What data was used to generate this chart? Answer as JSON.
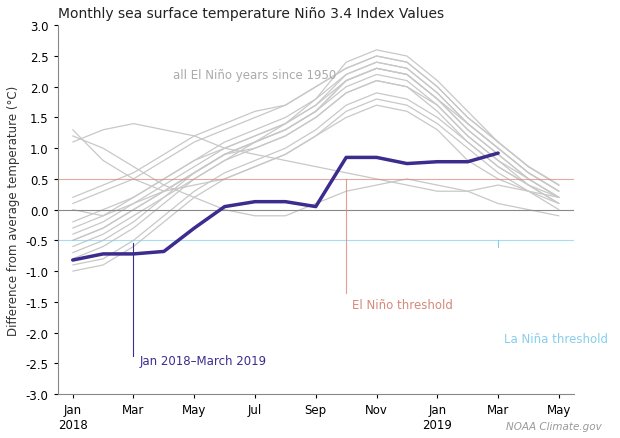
{
  "title": "Monthly sea surface temperature Niño 3.4 Index Values",
  "ylabel": "Difference from average temperature (°C)",
  "watermark": "NOAA Climate.gov",
  "ylim": [
    -3.0,
    3.0
  ],
  "yticks": [
    -3.0,
    -2.5,
    -2.0,
    -1.5,
    -1.0,
    -0.5,
    0.0,
    0.5,
    1.0,
    1.5,
    2.0,
    2.5,
    3.0
  ],
  "el_nino_threshold": 0.5,
  "la_nina_threshold": -0.5,
  "el_nino_color": "#d4897a",
  "la_nina_color": "#87ceeb",
  "zero_line_color": "#888888",
  "highlight_color": "#3d2b8e",
  "highlight_lw": 2.5,
  "gray_color": "#c8c8c8",
  "gray_lw": 0.9,
  "annotation_label": "Jan 2018–March 2019",
  "annotation_color": "#3d2b8e",
  "el_nino_label": "El Niño threshold",
  "la_nina_label": "La Niña threshold",
  "all_years_label": "all El Niño years since 1950",
  "tick_label_months": [
    "Jan",
    "Mar",
    "May",
    "Jul",
    "Sep",
    "Nov",
    "Jan",
    "Mar",
    "May"
  ],
  "tick_label_years": [
    "2018",
    "",
    "",
    "",
    "",
    "",
    "2019",
    "",
    ""
  ],
  "tick_positions": [
    0,
    2,
    4,
    6,
    8,
    10,
    12,
    14,
    16
  ],
  "highlight_x": [
    0,
    1,
    2,
    3,
    4,
    5,
    6,
    7,
    8,
    9,
    10,
    11,
    12,
    13,
    14
  ],
  "highlight_y": [
    -0.82,
    -0.72,
    -0.72,
    -0.68,
    -0.3,
    0.05,
    0.13,
    0.13,
    0.05,
    0.85,
    0.85,
    0.75,
    0.78,
    0.78,
    0.92
  ],
  "el_nino_vline_x": 9,
  "la_nina_vline_x": 14,
  "background_color": "#ffffff",
  "gray_lines": [
    [
      1.2,
      1.0,
      0.7,
      0.4,
      0.2,
      0.0,
      -0.1,
      -0.1,
      0.1,
      0.3,
      0.4,
      0.5,
      0.4,
      0.3,
      0.1,
      0.0,
      -0.1
    ],
    [
      1.3,
      0.8,
      0.5,
      0.3,
      0.4,
      0.5,
      0.7,
      0.9,
      1.2,
      1.5,
      1.7,
      1.6,
      1.3,
      0.8,
      0.5,
      0.3,
      0.2
    ],
    [
      0.0,
      -0.1,
      0.1,
      0.3,
      0.6,
      0.9,
      1.1,
      1.3,
      1.6,
      2.1,
      2.3,
      2.2,
      1.8,
      1.4,
      1.0,
      0.6,
      0.3
    ],
    [
      -0.5,
      -0.3,
      0.0,
      0.3,
      0.6,
      0.9,
      1.1,
      1.4,
      1.8,
      2.4,
      2.6,
      2.5,
      2.1,
      1.6,
      1.1,
      0.7,
      0.4
    ],
    [
      -0.8,
      -0.6,
      -0.3,
      0.1,
      0.5,
      0.8,
      1.1,
      1.3,
      1.6,
      2.1,
      2.3,
      2.2,
      1.8,
      1.3,
      0.9,
      0.5,
      0.2
    ],
    [
      -0.6,
      -0.4,
      -0.1,
      0.2,
      0.5,
      0.8,
      1.0,
      1.2,
      1.5,
      1.9,
      2.1,
      2.0,
      1.7,
      1.2,
      0.8,
      0.5,
      0.2
    ],
    [
      -0.9,
      -0.8,
      -0.5,
      -0.1,
      0.3,
      0.6,
      0.8,
      1.0,
      1.3,
      1.7,
      1.9,
      1.8,
      1.5,
      1.1,
      0.7,
      0.4,
      0.1
    ],
    [
      -0.7,
      -0.5,
      -0.2,
      0.2,
      0.6,
      0.9,
      1.1,
      1.3,
      1.6,
      2.0,
      2.2,
      2.1,
      1.7,
      1.2,
      0.8,
      0.4,
      0.2
    ],
    [
      -0.4,
      -0.2,
      0.1,
      0.4,
      0.7,
      1.0,
      1.2,
      1.4,
      1.7,
      2.2,
      2.4,
      2.3,
      1.9,
      1.4,
      1.0,
      0.6,
      0.3
    ],
    [
      -0.3,
      -0.1,
      0.2,
      0.5,
      0.8,
      1.1,
      1.3,
      1.5,
      1.8,
      2.2,
      2.4,
      2.3,
      1.9,
      1.4,
      1.0,
      0.6,
      0.3
    ],
    [
      0.1,
      0.3,
      0.5,
      0.8,
      1.1,
      1.3,
      1.5,
      1.7,
      2.0,
      2.3,
      2.5,
      2.4,
      2.0,
      1.5,
      1.1,
      0.7,
      0.4
    ],
    [
      -0.2,
      0.0,
      0.2,
      0.5,
      0.8,
      1.0,
      1.2,
      1.4,
      1.7,
      2.1,
      2.3,
      2.2,
      1.8,
      1.3,
      0.9,
      0.5,
      0.2
    ],
    [
      -1.0,
      -0.9,
      -0.6,
      -0.2,
      0.2,
      0.5,
      0.7,
      0.9,
      1.2,
      1.6,
      1.8,
      1.7,
      1.4,
      1.0,
      0.6,
      0.3,
      0.0
    ],
    [
      0.2,
      0.4,
      0.6,
      0.9,
      1.2,
      1.4,
      1.6,
      1.7,
      2.0,
      2.3,
      2.5,
      2.4,
      2.0,
      1.5,
      1.1,
      0.7,
      0.4
    ],
    [
      -0.5,
      -0.3,
      0.0,
      0.3,
      0.6,
      0.9,
      1.0,
      1.2,
      1.5,
      1.9,
      2.1,
      2.0,
      1.6,
      1.1,
      0.7,
      0.4,
      0.1
    ],
    [
      1.1,
      1.3,
      1.4,
      1.3,
      1.2,
      1.0,
      0.9,
      0.8,
      0.7,
      0.6,
      0.5,
      0.4,
      0.3,
      0.3,
      0.4,
      0.3,
      0.1
    ]
  ]
}
